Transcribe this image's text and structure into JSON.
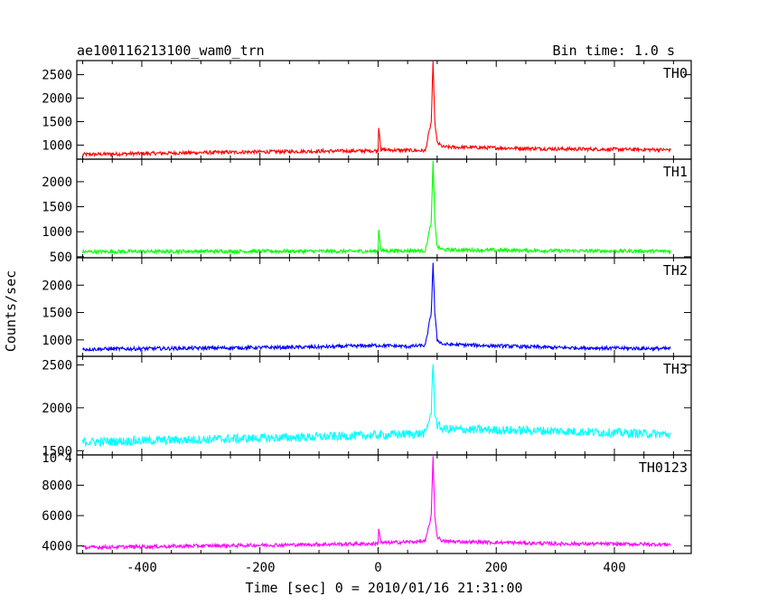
{
  "header": {
    "object_name": "ae100116213100_wam0_trn",
    "bin_time": "Bin time: 1.0 s"
  },
  "chart_data": {
    "type": "line",
    "xlabel": "Time [sec] 0 = 2010/01/16 21:31:00",
    "ylabel": "Counts/sec",
    "xlim": [
      -510,
      530
    ],
    "x_ticks": [
      -400,
      -200,
      0,
      200,
      400
    ],
    "panels": [
      {
        "name": "TH0",
        "color": "#ff0000",
        "ylim": [
          700,
          2800
        ],
        "y_ticks": [
          1000,
          1500,
          2000,
          2500
        ],
        "x": [
          -500,
          -300,
          -100,
          0,
          1,
          5,
          80,
          90,
          93,
          96,
          100,
          110,
          300,
          495
        ],
        "y": [
          800,
          840,
          870,
          880,
          1400,
          900,
          880,
          1500,
          2750,
          1500,
          1050,
          960,
          920,
          900
        ]
      },
      {
        "name": "TH1",
        "color": "#00ff00",
        "ylim": [
          480,
          2450
        ],
        "y_ticks": [
          500,
          1000,
          1500,
          2000
        ],
        "x": [
          -500,
          -300,
          -100,
          0,
          1,
          5,
          80,
          90,
          93,
          96,
          100,
          110,
          300,
          495
        ],
        "y": [
          600,
          610,
          610,
          610,
          1050,
          620,
          620,
          1200,
          2400,
          1250,
          700,
          640,
          620,
          610
        ]
      },
      {
        "name": "TH2",
        "color": "#0000ff",
        "ylim": [
          700,
          2500
        ],
        "y_ticks": [
          1000,
          1500,
          2000
        ],
        "x": [
          -500,
          -300,
          -100,
          0,
          50,
          80,
          90,
          93,
          96,
          100,
          110,
          300,
          495
        ],
        "y": [
          830,
          850,
          870,
          900,
          880,
          900,
          1500,
          2420,
          1500,
          1000,
          920,
          860,
          840
        ]
      },
      {
        "name": "TH3",
        "color": "#00ffff",
        "ylim": [
          1450,
          2600
        ],
        "y_ticks": [
          1500,
          2000,
          2500
        ],
        "x": [
          -500,
          -300,
          -100,
          0,
          80,
          90,
          93,
          96,
          100,
          110,
          300,
          495
        ],
        "y": [
          1600,
          1630,
          1660,
          1680,
          1700,
          1950,
          2550,
          1950,
          1800,
          1750,
          1730,
          1690
        ]
      },
      {
        "name": "TH0123",
        "color": "#ff00ff",
        "ylim": [
          3500,
          10000
        ],
        "y_ticks": [
          4000,
          6000,
          8000
        ],
        "y_ticks_extra": "10^4",
        "x": [
          -500,
          -300,
          -100,
          0,
          1,
          5,
          80,
          90,
          93,
          96,
          100,
          110,
          300,
          495
        ],
        "y": [
          3900,
          4000,
          4100,
          4150,
          5200,
          4200,
          4300,
          6000,
          9900,
          6000,
          4600,
          4300,
          4150,
          4100
        ]
      }
    ]
  }
}
